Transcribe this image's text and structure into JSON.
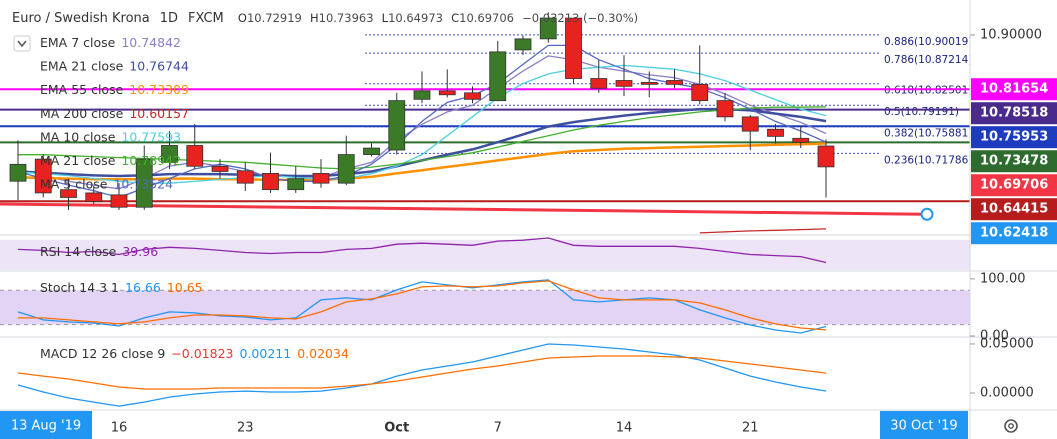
{
  "header": {
    "symbol": "Euro / Swedish Krona",
    "interval": "1D",
    "source": "FXCM",
    "open_label": "O",
    "high_label": "H",
    "low_label": "L",
    "close_label": "C",
    "change": "−0.03213 (−0.30%)"
  },
  "chart_data": [
    {
      "type": "candlestick",
      "categories": [
        null,
        null,
        null,
        null,
        "16",
        null,
        null,
        null,
        null,
        "23",
        null,
        null,
        null,
        null,
        null,
        "Oct",
        null,
        null,
        null,
        "7",
        null,
        null,
        null,
        null,
        "14",
        null,
        null,
        null,
        null,
        "21",
        null,
        null,
        null
      ],
      "open": [
        10.675,
        10.709,
        10.662,
        10.657,
        10.654,
        10.635,
        10.704,
        10.73,
        10.698,
        10.691,
        10.687,
        10.662,
        10.687,
        10.672,
        10.716,
        10.723,
        10.801,
        10.814,
        10.811,
        10.799,
        10.877,
        10.894,
        10.926,
        10.833,
        10.83,
        10.827,
        10.83,
        10.824,
        10.799,
        10.774,
        10.755,
        10.741,
        10.72919
      ],
      "high": [
        10.738,
        10.716,
        10.679,
        10.668,
        10.672,
        10.73,
        10.752,
        10.763,
        10.709,
        10.704,
        10.719,
        10.698,
        10.709,
        10.745,
        10.733,
        10.811,
        10.844,
        10.847,
        10.821,
        10.891,
        10.899,
        10.935,
        10.926,
        10.862,
        10.869,
        10.844,
        10.847,
        10.884,
        10.811,
        10.777,
        10.763,
        10.76,
        10.73963
      ],
      "low": [
        10.646,
        10.65,
        10.631,
        10.64,
        10.631,
        10.631,
        10.694,
        10.694,
        10.679,
        10.66,
        10.657,
        10.657,
        10.665,
        10.669,
        10.713,
        10.716,
        10.795,
        10.804,
        10.795,
        10.798,
        10.869,
        10.888,
        10.825,
        10.811,
        10.806,
        10.804,
        10.818,
        10.793,
        10.767,
        10.723,
        10.733,
        10.726,
        10.64973
      ],
      "close": [
        10.701,
        10.657,
        10.65,
        10.644,
        10.635,
        10.709,
        10.73,
        10.698,
        10.69,
        10.672,
        10.662,
        10.679,
        10.672,
        10.716,
        10.726,
        10.799,
        10.814,
        10.808,
        10.801,
        10.874,
        10.894,
        10.926,
        10.833,
        10.818,
        10.821,
        10.824,
        10.824,
        10.799,
        10.774,
        10.752,
        10.744,
        10.735,
        10.69706
      ],
      "up_color": "#3b7a26",
      "down_color": "#e8221e",
      "last_price_color": "#f23645",
      "ylim": [
        10.5938,
        10.9538
      ],
      "yticks": [
        {
          "value": 10.9,
          "label": "10.90000"
        }
      ],
      "series": [
        {
          "name": "EMA 7 close",
          "color": "#8c7fc9",
          "values": [
            10.6939,
            10.6836,
            10.6749,
            10.669,
            10.6632,
            10.6792,
            10.6982,
            10.7041,
            10.6982,
            10.6895,
            10.6822,
            10.6822,
            10.6807,
            10.6939,
            10.7041,
            10.7377,
            10.7626,
            10.7816,
            10.7918,
            10.8181,
            10.8444,
            10.8678,
            10.862,
            10.8503,
            10.8444,
            10.8386,
            10.8342,
            10.824,
            10.8094,
            10.7918,
            10.7787,
            10.7655,
            10.74842
          ]
        },
        {
          "name": "EMA 21 close",
          "color": "#3f4fa0",
          "values": [
            10.69,
            10.688,
            10.686,
            10.684,
            10.683,
            10.684,
            10.686,
            10.686,
            10.686,
            10.685,
            10.684,
            10.683,
            10.683,
            10.686,
            10.69,
            10.698,
            10.707,
            10.716,
            10.724,
            10.735,
            10.747,
            10.759,
            10.766,
            10.771,
            10.776,
            10.78,
            10.783,
            10.786,
            10.786,
            10.784,
            10.779,
            10.774,
            10.76744
          ]
        },
        {
          "name": "EMA 55 close",
          "color": "#ff9100",
          "values": [
            10.681,
            10.68,
            10.679,
            10.678,
            10.678,
            10.678,
            10.679,
            10.679,
            10.678,
            10.678,
            10.677,
            10.677,
            10.677,
            10.679,
            10.682,
            10.687,
            10.692,
            10.697,
            10.702,
            10.707,
            10.712,
            10.717,
            10.721,
            10.723,
            10.725,
            10.726,
            10.727,
            10.728,
            10.729,
            10.73,
            10.731,
            10.732,
            10.73309
          ]
        },
        {
          "name": "MA 200 close",
          "color": "#c62828",
          "values": [
            null,
            null,
            null,
            null,
            null,
            null,
            null,
            null,
            null,
            null,
            null,
            null,
            null,
            null,
            null,
            null,
            null,
            null,
            null,
            null,
            null,
            null,
            null,
            null,
            null,
            null,
            null,
            10.5955,
            10.597,
            10.5985,
            10.5995,
            10.6005,
            10.60157
          ]
        },
        {
          "name": "MA 10 close",
          "color": "#4dd0e1",
          "values": [
            10.6895,
            10.6865,
            10.6836,
            10.6792,
            10.6749,
            10.6719,
            10.6719,
            10.6749,
            10.6778,
            10.6807,
            10.6836,
            10.6807,
            10.6778,
            10.6792,
            10.6865,
            10.6982,
            10.7158,
            10.745,
            10.7743,
            10.8035,
            10.8254,
            10.8401,
            10.8474,
            10.8503,
            10.8532,
            10.8503,
            10.8474,
            10.8401,
            10.8298,
            10.8152,
            10.8006,
            10.786,
            10.77593
          ]
        },
        {
          "name": "MA 21 close",
          "color": "#43b02a",
          "values": [
            10.7158,
            10.7158,
            10.7143,
            10.7129,
            10.7114,
            10.7099,
            10.7085,
            10.707,
            10.7055,
            10.7041,
            10.7012,
            10.6982,
            10.6953,
            10.6939,
            10.6968,
            10.7012,
            10.707,
            10.7129,
            10.7187,
            10.7275,
            10.7363,
            10.745,
            10.7538,
            10.7611,
            10.767,
            10.7728,
            10.7772,
            10.7816,
            10.7845,
            10.7874,
            10.7889,
            10.7889,
            10.78942
          ]
        },
        {
          "name": "MA 5 close",
          "color": "#5468c4",
          "values": [
            10.6895,
            10.6792,
            10.669,
            10.6602,
            10.65,
            10.6646,
            10.6792,
            10.6939,
            10.7012,
            10.6939,
            10.6792,
            10.6749,
            10.6749,
            10.6836,
            10.7012,
            10.7304,
            10.767,
            10.7962,
            10.8064,
            10.8254,
            10.8547,
            10.8839,
            10.8839,
            10.862,
            10.8474,
            10.8327,
            10.8254,
            10.8181,
            10.8035,
            10.786,
            10.767,
            10.7523,
            10.73524
          ]
        }
      ],
      "horizontal_lines": [
        {
          "value": 10.81654,
          "color": "#ff00ff"
        },
        {
          "value": 10.78518,
          "color": "#4a2b8c"
        },
        {
          "value": 10.75953,
          "color": "#1c3bbf"
        },
        {
          "value": 10.73478,
          "color": "#2e6b2e"
        },
        {
          "value": 10.64415,
          "color": "#b71c1c"
        }
      ],
      "fib_levels": [
        {
          "value": 10.90019,
          "label": "0.886(10.90019)"
        },
        {
          "value": 10.87214,
          "label": "0.786(10.87214)"
        },
        {
          "value": 10.82501,
          "label": "0.618(10.82501)"
        },
        {
          "value": 10.79191,
          "label": "0.5(10.79191)"
        },
        {
          "value": 10.75881,
          "label": "0.382(10.75881)"
        },
        {
          "value": 10.71786,
          "label": "0.236(10.71786)"
        }
      ],
      "fib_color": "#3f51b5",
      "trend_line": {
        "color": "#f23645",
        "values": [
          10.64,
          10.62418
        ],
        "end_color": "#2196f3"
      },
      "date_labels": [
        "13 Aug '19",
        "30 Oct '19"
      ]
    },
    {
      "type": "line",
      "title": "RSI 14 close",
      "ylim": [
        30,
        75
      ],
      "band": [
        30,
        70
      ],
      "series": [
        {
          "color": "#8e24aa",
          "values": [
            57.3,
            55.9,
            53.2,
            54.5,
            50.5,
            57.3,
            60.0,
            58.6,
            55.9,
            53.2,
            51.8,
            53.2,
            53.2,
            57.3,
            58.6,
            64.1,
            65.5,
            64.1,
            62.7,
            68.2,
            69.5,
            72.3,
            62.7,
            61.4,
            61.4,
            61.4,
            61.4,
            58.6,
            54.5,
            50.5,
            49.1,
            47.7,
            39.96
          ]
        }
      ]
    },
    {
      "type": "line",
      "title": "Stoch 14 3 1",
      "ylim": [
        0,
        112
      ],
      "band": [
        20,
        80
      ],
      "yticks": [
        {
          "value": 100,
          "label": "100.00"
        },
        {
          "value": 0,
          "label": "0.00"
        }
      ],
      "series": [
        {
          "color": "#2196f3",
          "values": [
            42.1,
            28.1,
            24.6,
            22.8,
            17.5,
            31.6,
            42.1,
            40.4,
            35.1,
            33.3,
            28.1,
            31.6,
            63.2,
            66.7,
            63.2,
            80.7,
            94.7,
            89.5,
            84.2,
            89.5,
            94.7,
            98.2,
            63.2,
            59.6,
            63.2,
            66.7,
            63.2,
            45.6,
            31.6,
            19.3,
            10.5,
            5.3,
            16.66
          ]
        },
        {
          "color": "#ff6d00",
          "values": [
            31.6,
            31.6,
            28.1,
            24.6,
            21.1,
            24.6,
            31.6,
            36.8,
            36.8,
            35.1,
            31.6,
            29.8,
            42.1,
            59.6,
            64.9,
            73.7,
            86.0,
            87.7,
            86.0,
            87.7,
            93.0,
            96.5,
            80.7,
            66.7,
            63.2,
            63.2,
            63.2,
            57.9,
            45.6,
            31.6,
            21.1,
            14.0,
            10.65
          ]
        }
      ]
    },
    {
      "type": "line",
      "title": "MACD 12 26 close 9",
      "histogram_label": "−0.01823",
      "ylim": [
        -0.0173,
        0.0561
      ],
      "yticks": [
        {
          "value": 0.05,
          "label": "0.05000"
        },
        {
          "value": 0,
          "label": "0.00000"
        }
      ],
      "series": [
        {
          "color": "#2196f3",
          "values": [
            0.0082,
            0.001,
            -0.0051,
            -0.0092,
            -0.0133,
            -0.0092,
            -0.0041,
            -0.001,
            0.001,
            0.002,
            0.001,
            0.001,
            0.002,
            0.0051,
            0.0092,
            0.0173,
            0.0235,
            0.0276,
            0.0316,
            0.0378,
            0.0439,
            0.05,
            0.049,
            0.0469,
            0.0449,
            0.0418,
            0.0388,
            0.0337,
            0.0255,
            0.0173,
            0.0112,
            0.0061,
            0.00211
          ]
        },
        {
          "color": "#ff6d00",
          "values": [
            0.0204,
            0.0173,
            0.0143,
            0.0102,
            0.0061,
            0.0041,
            0.0041,
            0.0041,
            0.0051,
            0.0051,
            0.0051,
            0.0051,
            0.0051,
            0.0071,
            0.0092,
            0.0122,
            0.0163,
            0.0204,
            0.0245,
            0.0276,
            0.0316,
            0.0357,
            0.0367,
            0.0378,
            0.0378,
            0.0378,
            0.0367,
            0.0357,
            0.0327,
            0.0296,
            0.0265,
            0.0235,
            0.02034
          ]
        }
      ]
    }
  ]
}
